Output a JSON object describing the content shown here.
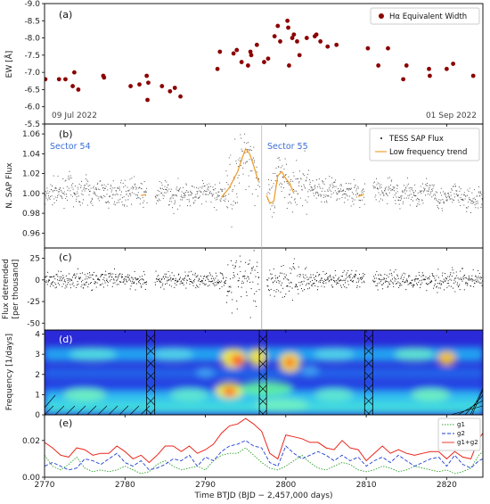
{
  "colors": {
    "ew_marker": "#8b0000",
    "flux_points": "#555555",
    "trend": "#f0a030",
    "detrended_points": "#111111",
    "g1": "#2ca02c",
    "g2": "#1f3fd0",
    "g1g2": "#e8261c",
    "sector_line": "#aaaaaa"
  },
  "chart_data": [
    {
      "panel": "(a)",
      "type": "scatter",
      "ylabel": "EW [Å]",
      "ylim": [
        -9.0,
        -5.5
      ],
      "y_inverted": true,
      "yticks": [
        "-9.0",
        "-8.5",
        "-8.0",
        "-7.5",
        "-7.0",
        "-6.5",
        "-6.0",
        "-5.5"
      ],
      "legend": "Hα Equivalent Width",
      "annotations": [
        "09 Jul 2022",
        "01 Sep 2022"
      ],
      "x": [
        2770.1,
        2771.8,
        2772.6,
        2773.5,
        2773.7,
        2774.2,
        2777.3,
        2777.4,
        2780.7,
        2781.8,
        2782.7,
        2782.8,
        2782.9,
        2784.6,
        2785.6,
        2786.2,
        2786.9,
        2791.5,
        2791.8,
        2793.5,
        2793.9,
        2794.5,
        2795.3,
        2795.6,
        2795.7,
        2796.4,
        2797.3,
        2797.8,
        2798.6,
        2799.0,
        2799.3,
        2800.2,
        2800.3,
        2800.4,
        2800.8,
        2801.0,
        2801.4,
        2801.7,
        2802.6,
        2803.6,
        2803.8,
        2804.3,
        2805.2,
        2806.3,
        2810.2,
        2811.5,
        2812.7,
        2814.6,
        2815.0,
        2817.8,
        2817.9,
        2820.0,
        2820.8,
        2823.3
      ],
      "y": [
        -6.8,
        -6.8,
        -6.8,
        -6.6,
        -7.0,
        -6.5,
        -6.9,
        -6.85,
        -6.6,
        -6.65,
        -6.9,
        -6.2,
        -6.7,
        -6.6,
        -6.45,
        -6.55,
        -6.3,
        -7.1,
        -7.6,
        -7.55,
        -7.65,
        -7.3,
        -7.2,
        -7.6,
        -7.5,
        -7.8,
        -7.3,
        -7.4,
        -8.05,
        -8.35,
        -7.9,
        -8.5,
        -8.3,
        -7.2,
        -8.0,
        -8.1,
        -7.9,
        -7.5,
        -8.0,
        -8.05,
        -8.1,
        -7.9,
        -7.75,
        -7.8,
        -7.7,
        -7.2,
        -7.7,
        -6.8,
        -7.2,
        -7.1,
        -6.9,
        -7.1,
        -7.25,
        -6.9
      ]
    },
    {
      "panel": "(b)",
      "type": "scatter",
      "ylabel": "N. SAP Flux",
      "ylim": [
        0.945,
        1.07
      ],
      "yticks": [
        "0.96",
        "0.98",
        "1.00",
        "1.02",
        "1.04",
        "1.06"
      ],
      "legend": [
        "TESS SAP Flux",
        "Low frequency trend"
      ],
      "sector_labels": [
        "Sector 54",
        "Sector 55"
      ],
      "sector_boundary_x": 2797.0,
      "gaps": [
        [
          2782.7,
          2783.7
        ],
        [
          2796.7,
          2797.6
        ],
        [
          2809.8,
          2810.8
        ]
      ],
      "trend": {
        "x": [
          2770,
          2771,
          2772,
          2773,
          2774,
          2775,
          2776,
          2777,
          2778,
          2779,
          2780,
          2781,
          2782,
          2782.6,
          2783.8,
          2785,
          2786,
          2787,
          2788,
          2789,
          2790,
          2791,
          2792,
          2792.5,
          2793,
          2793.5,
          2794,
          2794.5,
          2795,
          2795.5,
          2796,
          2796.6,
          2797.6,
          2798,
          2798.5,
          2799,
          2799.5,
          2800,
          2800.5,
          2801,
          2802,
          2803,
          2804,
          2805,
          2806,
          2807,
          2808,
          2809,
          2809.7,
          2810.9,
          2812,
          2813,
          2814,
          2815,
          2816,
          2817,
          2818,
          2819,
          2820,
          2821,
          2822,
          2823,
          2824.5
        ],
        "y": [
          0.995,
          1.002,
          0.999,
          1.008,
          0.996,
          1.006,
          0.998,
          1.004,
          0.997,
          1.003,
          0.999,
          1.005,
          0.998,
          0.999,
          0.996,
          1.004,
          0.993,
          1.003,
          0.998,
          0.997,
          1.002,
          0.999,
          0.996,
          1.001,
          1.006,
          1.014,
          1.022,
          1.034,
          1.045,
          1.04,
          1.028,
          1.012,
          0.998,
          0.99,
          0.992,
          1.018,
          1.022,
          1.015,
          1.01,
          1.0,
          1.012,
          1.006,
          1.004,
          1.001,
          1.008,
          1.0,
          1.004,
          0.997,
          0.999,
          1.006,
          0.998,
          1.008,
          0.994,
          1.004,
          0.997,
          0.999,
          1.006,
          0.995,
          0.993,
          1.001,
          0.995,
          0.991,
          0.998
        ]
      }
    },
    {
      "panel": "(c)",
      "type": "scatter",
      "ylabel": [
        "Flux detrended",
        "[per thousand]"
      ],
      "ylim": [
        -58,
        37
      ],
      "yticks": [
        "-50",
        "-25",
        "0",
        "25"
      ]
    },
    {
      "panel": "(d)",
      "type": "heatmap",
      "ylabel": "Frequency [1/days]",
      "ylim": [
        0,
        4.2
      ],
      "yticks": [
        "0",
        "1",
        "2",
        "3",
        "4"
      ]
    },
    {
      "panel": "(e)",
      "type": "line",
      "ylim": [
        0,
        0.034
      ],
      "yticks": [
        "0.00",
        "0.02"
      ],
      "xlabel": "Time BTJD (BJD − 2,457,000 days)",
      "xlim": [
        2770,
        2824.5
      ],
      "xticks": [
        "2770",
        "2780",
        "2790",
        "2800",
        "2810",
        "2820"
      ],
      "series": [
        {
          "name": "g1",
          "style": "dotted"
        },
        {
          "name": "g2",
          "style": "dashed"
        },
        {
          "name": "g1+g2",
          "style": "solid"
        }
      ],
      "x": [
        2770,
        2771,
        2772,
        2773,
        2774,
        2775,
        2776,
        2777,
        2778,
        2779,
        2780,
        2781,
        2782,
        2783,
        2784,
        2785,
        2786,
        2787,
        2788,
        2789,
        2790,
        2791,
        2792,
        2793,
        2794,
        2795,
        2796,
        2797,
        2798,
        2799,
        2800,
        2801,
        2802,
        2803,
        2804,
        2805,
        2806,
        2807,
        2808,
        2809,
        2810,
        2811,
        2812,
        2813,
        2814,
        2815,
        2816,
        2817,
        2818,
        2819,
        2820,
        2821,
        2822,
        2823,
        2824,
        2824.5
      ],
      "g1": [
        0.012,
        0.006,
        0.004,
        0.007,
        0.011,
        0.005,
        0.003,
        0.004,
        0.003,
        0.004,
        0.006,
        0.004,
        0.002,
        0.003,
        0.007,
        0.009,
        0.006,
        0.004,
        0.005,
        0.006,
        0.004,
        0.009,
        0.012,
        0.013,
        0.013,
        0.016,
        0.012,
        0.008,
        0.005,
        0.004,
        0.006,
        0.009,
        0.012,
        0.008,
        0.005,
        0.004,
        0.006,
        0.008,
        0.007,
        0.004,
        0.003,
        0.004,
        0.006,
        0.005,
        0.003,
        0.004,
        0.006,
        0.005,
        0.004,
        0.003,
        0.004,
        0.002,
        0.003,
        0.005,
        0.012,
        0.014
      ],
      "g2": [
        0.006,
        0.008,
        0.006,
        0.004,
        0.005,
        0.01,
        0.009,
        0.007,
        0.01,
        0.013,
        0.008,
        0.006,
        0.009,
        0.004,
        0.005,
        0.007,
        0.01,
        0.009,
        0.012,
        0.006,
        0.011,
        0.009,
        0.014,
        0.017,
        0.018,
        0.02,
        0.017,
        0.016,
        0.008,
        0.006,
        0.017,
        0.013,
        0.01,
        0.012,
        0.014,
        0.012,
        0.009,
        0.012,
        0.009,
        0.011,
        0.006,
        0.009,
        0.011,
        0.008,
        0.012,
        0.009,
        0.006,
        0.008,
        0.01,
        0.011,
        0.006,
        0.012,
        0.007,
        0.005,
        0.009,
        0.01
      ],
      "g1g2": [
        0.019,
        0.016,
        0.012,
        0.011,
        0.016,
        0.015,
        0.012,
        0.013,
        0.013,
        0.017,
        0.014,
        0.01,
        0.012,
        0.008,
        0.012,
        0.017,
        0.017,
        0.014,
        0.017,
        0.013,
        0.015,
        0.018,
        0.024,
        0.028,
        0.029,
        0.032,
        0.029,
        0.025,
        0.013,
        0.01,
        0.023,
        0.022,
        0.021,
        0.019,
        0.019,
        0.016,
        0.015,
        0.02,
        0.016,
        0.015,
        0.009,
        0.013,
        0.017,
        0.013,
        0.015,
        0.013,
        0.012,
        0.013,
        0.014,
        0.014,
        0.01,
        0.014,
        0.011,
        0.01,
        0.021,
        0.024
      ]
    }
  ]
}
